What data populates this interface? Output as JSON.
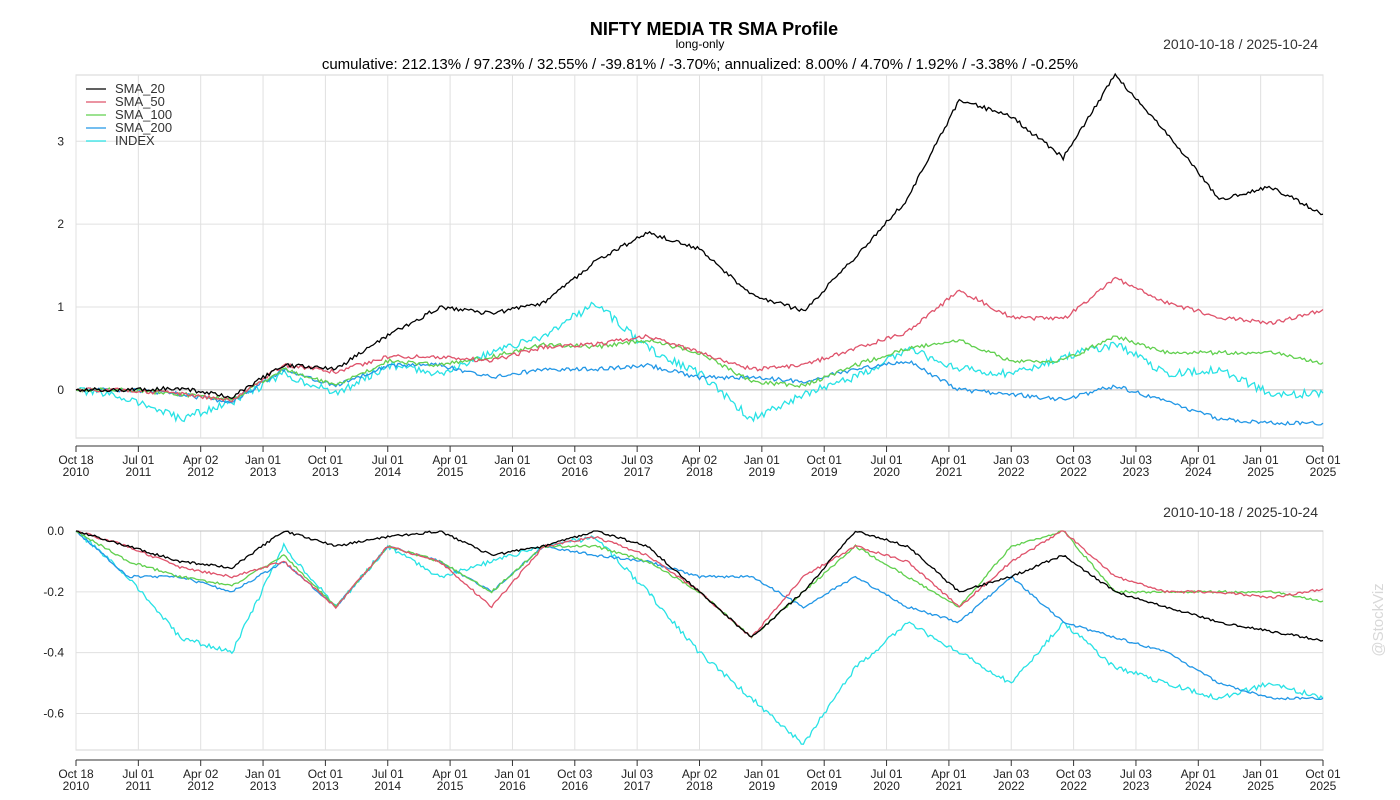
{
  "title": "NIFTY MEDIA TR SMA Profile",
  "subtitle": "long-only",
  "date_range": "2010-10-18 / 2025-10-24",
  "stats_line": "cumulative: 212.13% / 97.23% / 32.55% / -39.81% / -3.70%; annualized: 8.00% / 4.70% / 1.92% / -3.38% / -0.25%",
  "watermark": "@StockViz",
  "colors": {
    "SMA_20": "#000000",
    "SMA_50": "#df536b",
    "SMA_100": "#61d04f",
    "SMA_200": "#2297e6",
    "INDEX": "#28e2e5",
    "grid": "#e0e0e0",
    "axis": "#333333"
  },
  "chart_data": [
    {
      "type": "line",
      "name": "cumulative returns",
      "x_ticks": [
        "Oct 18\n2010",
        "Jul 01\n2011",
        "Apr 02\n2012",
        "Jan 01\n2013",
        "Oct 01\n2013",
        "Jul 01\n2014",
        "Apr 01\n2015",
        "Jan 01\n2016",
        "Oct 03\n2016",
        "Jul 03\n2017",
        "Apr 02\n2018",
        "Jan 01\n2019",
        "Oct 01\n2019",
        "Jul 01\n2020",
        "Apr 01\n2021",
        "Jan 03\n2022",
        "Oct 03\n2022",
        "Jul 03\n2023",
        "Apr 01\n2024",
        "Jan 01\n2025",
        "Oct 01\n2025"
      ],
      "y_ticks": [
        0,
        1,
        2,
        3
      ],
      "ylim": [
        -0.58,
        3.8
      ],
      "grid": true,
      "legend_position": "top-left",
      "legend": [
        "SMA_20",
        "SMA_50",
        "SMA_100",
        "SMA_200",
        "INDEX"
      ],
      "series": [
        {
          "name": "SMA_20",
          "values": [
            0,
            0,
            0.02,
            -0.08,
            0.3,
            0.25,
            0.65,
            1.0,
            0.92,
            1.05,
            1.55,
            1.9,
            1.7,
            1.15,
            0.95,
            1.6,
            2.3,
            3.5,
            3.3,
            2.8,
            3.8,
            3.1,
            2.3,
            2.45,
            2.12
          ]
        },
        {
          "name": "SMA_50",
          "values": [
            0,
            0,
            -0.05,
            -0.12,
            0.3,
            0.22,
            0.4,
            0.4,
            0.35,
            0.52,
            0.55,
            0.65,
            0.45,
            0.25,
            0.3,
            0.5,
            0.7,
            1.2,
            0.88,
            0.85,
            1.35,
            1.05,
            0.88,
            0.8,
            0.97
          ]
        },
        {
          "name": "SMA_100",
          "values": [
            0,
            0,
            -0.05,
            -0.12,
            0.25,
            0.05,
            0.35,
            0.3,
            0.4,
            0.55,
            0.52,
            0.6,
            0.45,
            0.1,
            0.05,
            0.3,
            0.5,
            0.6,
            0.35,
            0.35,
            0.65,
            0.45,
            0.45,
            0.45,
            0.33
          ]
        },
        {
          "name": "SMA_200",
          "values": [
            0,
            0,
            -0.05,
            -0.15,
            0.25,
            0.05,
            0.3,
            0.3,
            0.15,
            0.25,
            0.25,
            0.3,
            0.15,
            0.15,
            0.1,
            0.25,
            0.35,
            0.0,
            -0.05,
            -0.12,
            0.05,
            -0.15,
            -0.35,
            -0.4,
            -0.4
          ]
        },
        {
          "name": "INDEX",
          "values": [
            0,
            -0.1,
            -0.35,
            -0.15,
            0.2,
            -0.05,
            0.3,
            0.2,
            0.45,
            0.65,
            1.05,
            0.5,
            0.2,
            -0.35,
            -0.05,
            0.15,
            0.5,
            0.25,
            0.2,
            0.4,
            0.55,
            0.2,
            0.25,
            -0.05,
            -0.04
          ]
        }
      ]
    },
    {
      "type": "line",
      "name": "drawdowns",
      "x_ticks": [
        "Oct 18\n2010",
        "Jul 01\n2011",
        "Apr 02\n2012",
        "Jan 01\n2013",
        "Oct 01\n2013",
        "Jul 01\n2014",
        "Apr 01\n2015",
        "Jan 01\n2016",
        "Oct 03\n2016",
        "Jul 03\n2017",
        "Apr 02\n2018",
        "Jan 01\n2019",
        "Oct 01\n2019",
        "Jul 01\n2020",
        "Apr 01\n2021",
        "Jan 03\n2022",
        "Oct 03\n2022",
        "Jul 03\n2023",
        "Apr 01\n2024",
        "Jan 01\n2025",
        "Oct 01\n2025"
      ],
      "y_ticks": [
        0.0,
        -0.2,
        -0.4,
        -0.6
      ],
      "y_tick_labels": [
        "0.0",
        "-0.2",
        "-0.4",
        "-0.6"
      ],
      "ylim": [
        -0.72,
        0.0
      ],
      "grid": true,
      "series": [
        {
          "name": "SMA_20",
          "values": [
            0,
            -0.05,
            -0.1,
            -0.12,
            0,
            -0.05,
            -0.02,
            0,
            -0.08,
            -0.05,
            0,
            -0.05,
            -0.2,
            -0.35,
            -0.2,
            0,
            -0.05,
            -0.2,
            -0.15,
            -0.08,
            -0.2,
            -0.25,
            -0.3,
            -0.33,
            -0.36
          ]
        },
        {
          "name": "SMA_50",
          "values": [
            0,
            -0.05,
            -0.12,
            -0.15,
            -0.1,
            -0.25,
            -0.05,
            -0.1,
            -0.25,
            -0.05,
            -0.02,
            -0.08,
            -0.2,
            -0.35,
            -0.15,
            -0.05,
            -0.1,
            -0.25,
            -0.1,
            0,
            -0.15,
            -0.2,
            -0.2,
            -0.22,
            -0.19
          ]
        },
        {
          "name": "SMA_100",
          "values": [
            0,
            -0.1,
            -0.15,
            -0.18,
            -0.08,
            -0.25,
            -0.05,
            -0.1,
            -0.2,
            -0.05,
            -0.05,
            -0.1,
            -0.2,
            -0.35,
            -0.2,
            -0.05,
            -0.15,
            -0.25,
            -0.05,
            0,
            -0.2,
            -0.2,
            -0.2,
            -0.2,
            -0.23
          ]
        },
        {
          "name": "SMA_200",
          "values": [
            0,
            -0.15,
            -0.15,
            -0.2,
            -0.1,
            -0.25,
            -0.05,
            -0.1,
            -0.2,
            -0.05,
            -0.08,
            -0.1,
            -0.15,
            -0.15,
            -0.25,
            -0.15,
            -0.25,
            -0.3,
            -0.15,
            -0.3,
            -0.35,
            -0.4,
            -0.5,
            -0.55,
            -0.55
          ]
        },
        {
          "name": "INDEX",
          "values": [
            0,
            -0.15,
            -0.35,
            -0.4,
            -0.05,
            -0.25,
            -0.05,
            -0.15,
            -0.1,
            -0.05,
            -0.02,
            -0.2,
            -0.4,
            -0.55,
            -0.7,
            -0.45,
            -0.3,
            -0.4,
            -0.5,
            -0.3,
            -0.45,
            -0.5,
            -0.55,
            -0.5,
            -0.55
          ]
        }
      ]
    }
  ]
}
